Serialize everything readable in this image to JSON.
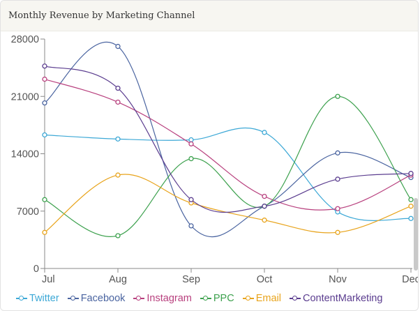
{
  "header": {
    "title": "Monthly Revenue by Marketing Channel"
  },
  "chart_data": {
    "type": "line",
    "title": "Monthly Revenue by Marketing Channel",
    "xlabel": "",
    "ylabel": "",
    "categories": [
      "Jul",
      "Aug",
      "Sep",
      "Oct",
      "Nov",
      "Dec"
    ],
    "ylim": [
      0,
      28000
    ],
    "yticks": [
      0,
      7000,
      14000,
      21000,
      28000
    ],
    "grid": false,
    "legend_position": "bottom",
    "curve": "smooth",
    "series": [
      {
        "name": "Twitter",
        "color": "#3ca8d6",
        "values": [
          16300,
          15800,
          15700,
          16600,
          6900,
          6100
        ]
      },
      {
        "name": "Facebook",
        "color": "#4a64a0",
        "values": [
          20200,
          27100,
          5200,
          7600,
          14100,
          11100
        ]
      },
      {
        "name": "Instagram",
        "color": "#b8407e",
        "values": [
          23100,
          20300,
          15200,
          8800,
          7300,
          11400
        ]
      },
      {
        "name": "PPC",
        "color": "#3da14e",
        "values": [
          8400,
          4000,
          13400,
          7600,
          21000,
          8400
        ]
      },
      {
        "name": "Email",
        "color": "#e8a41c",
        "values": [
          4400,
          11400,
          8000,
          5900,
          4400,
          7600
        ]
      },
      {
        "name": "ContentMarketing",
        "color": "#5b3d8f",
        "values": [
          24700,
          22000,
          8400,
          7600,
          10900,
          11600
        ]
      }
    ]
  }
}
